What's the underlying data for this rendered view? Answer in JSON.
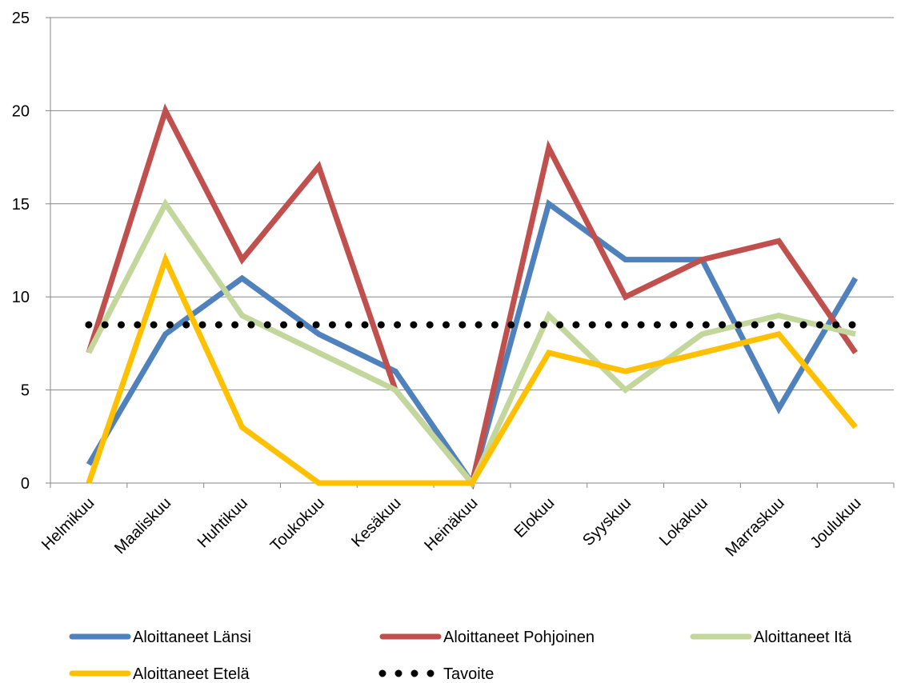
{
  "chart_data": {
    "type": "line",
    "title": "",
    "xlabel": "",
    "ylabel": "",
    "ylim": [
      0,
      25
    ],
    "yticks": [
      0,
      5,
      10,
      15,
      20,
      25
    ],
    "grid": "horizontal",
    "legend_position": "bottom",
    "categories": [
      "Helmikuu",
      "Maaliskuu",
      "Huhtikuu",
      "Toukokuu",
      "Kesäkuu",
      "Heinäkuu",
      "Elokuu",
      "Syyskuu",
      "Lokakuu",
      "Marraskuu",
      "Joulukuu"
    ],
    "series": [
      {
        "name": "Aloittaneet Länsi",
        "color": "#4F81BD",
        "style": "solid",
        "values": [
          1,
          8,
          11,
          8,
          6,
          0,
          15,
          12,
          12,
          4,
          11
        ]
      },
      {
        "name": "Aloittaneet Pohjoinen",
        "color": "#C0504D",
        "style": "solid",
        "values": [
          7,
          20,
          12,
          17,
          5,
          0,
          18,
          10,
          12,
          13,
          7
        ]
      },
      {
        "name": "Aloittaneet Itä",
        "color": "#C3D69B",
        "style": "solid",
        "values": [
          7,
          15,
          9,
          7,
          5,
          0,
          9,
          5,
          8,
          9,
          8
        ]
      },
      {
        "name": "Aloittaneet Etelä",
        "color": "#FFC000",
        "style": "solid",
        "values": [
          0,
          12,
          3,
          0,
          0,
          0,
          7,
          6,
          7,
          8,
          3
        ]
      },
      {
        "name": "Tavoite",
        "color": "#000000",
        "style": "dotted",
        "values": [
          8.5,
          8.5,
          8.5,
          8.5,
          8.5,
          8.5,
          8.5,
          8.5,
          8.5,
          8.5,
          8.5
        ]
      }
    ]
  }
}
